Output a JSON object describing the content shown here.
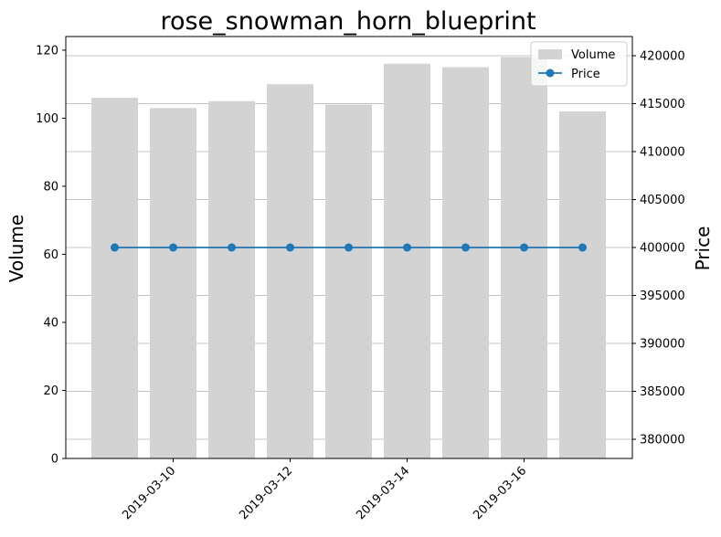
{
  "chart_data": {
    "type": "bar",
    "title": "rose_snowman_horn_blueprint",
    "dates": [
      "2019-03-09",
      "2019-03-10",
      "2019-03-11",
      "2019-03-12",
      "2019-03-13",
      "2019-03-14",
      "2019-03-15",
      "2019-03-16",
      "2019-03-17"
    ],
    "series": [
      {
        "name": "Volume",
        "type": "bar",
        "axis": "left",
        "color": "#d3d3d3",
        "values": [
          106,
          103,
          105,
          110,
          104,
          116,
          115,
          118,
          102
        ]
      },
      {
        "name": "Price",
        "type": "line",
        "axis": "right",
        "color": "#1f77b4",
        "values": [
          400000,
          400000,
          400000,
          400000,
          400000,
          400000,
          400000,
          400000,
          400000
        ]
      }
    ],
    "ylabel": "Volume",
    "y2label": "Price",
    "xlabel": "",
    "ylim": [
      0,
      124
    ],
    "y2lim": [
      378000,
      422000
    ],
    "x_tick_labels": [
      "2019-03-10",
      "2019-03-12",
      "2019-03-14",
      "2019-03-16"
    ],
    "y_ticks": [
      0,
      20,
      40,
      60,
      80,
      100,
      120
    ],
    "y2_ticks": [
      380000,
      385000,
      390000,
      395000,
      400000,
      405000,
      410000,
      415000,
      420000
    ],
    "grid": "horizontal, right axis",
    "legend_position": "top-right"
  }
}
